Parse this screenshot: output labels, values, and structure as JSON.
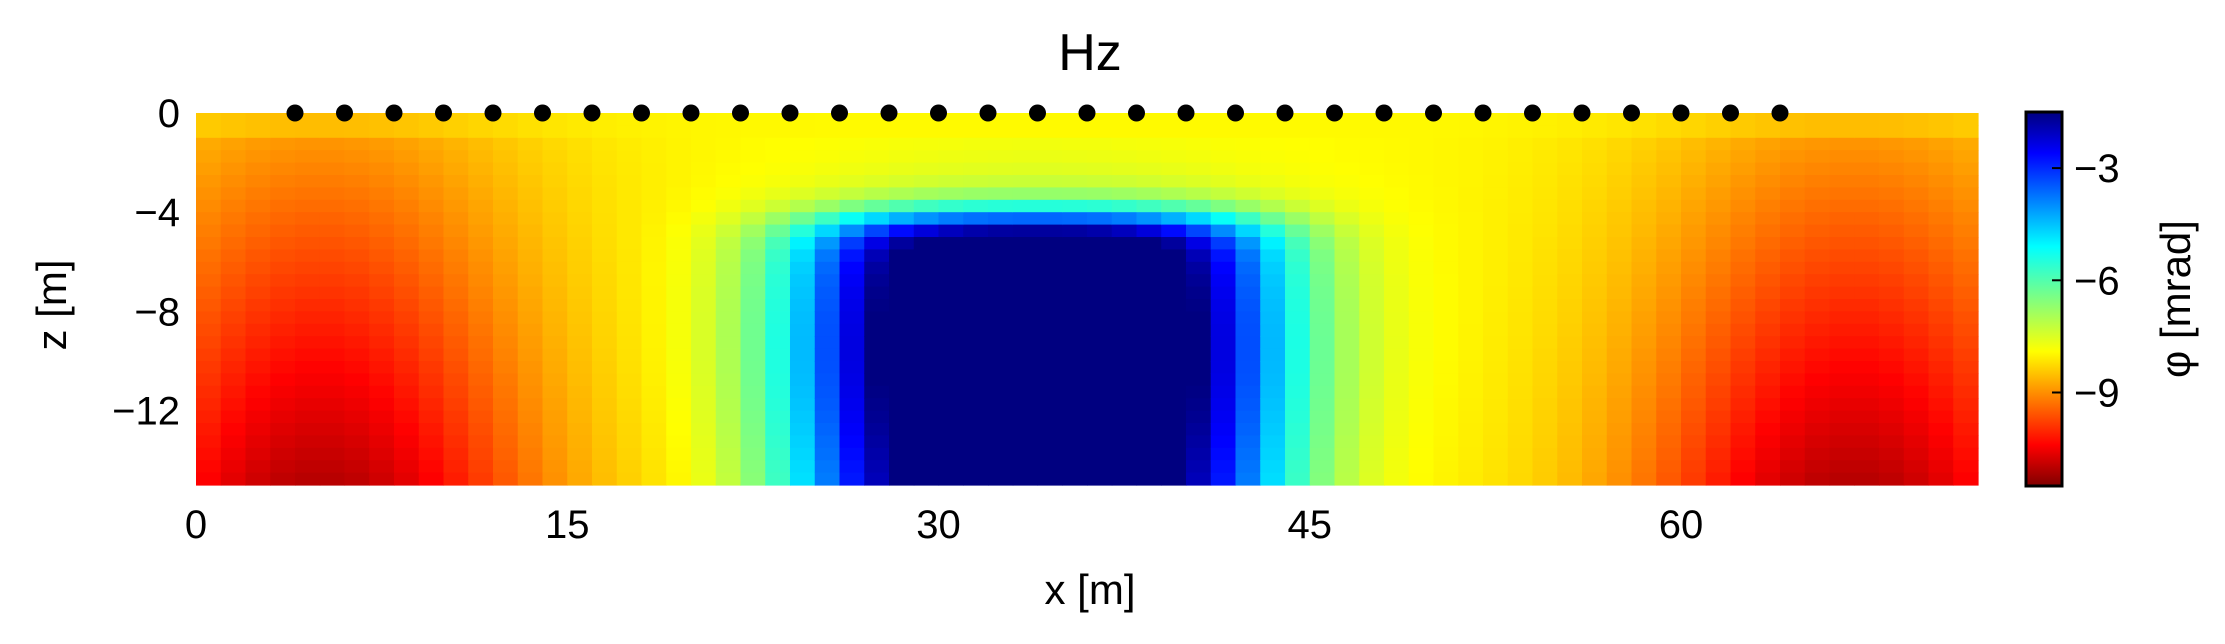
{
  "chart_data": {
    "type": "heatmap",
    "title": "Hz",
    "xlabel": "x [m]",
    "ylabel": "z [m]",
    "xlim": [
      0,
      72
    ],
    "ylim": [
      -15,
      0
    ],
    "x_ticks": [
      0,
      15,
      30,
      45,
      60
    ],
    "x_tick_labels": [
      "0",
      "15",
      "30",
      "45",
      "60"
    ],
    "y_ticks": [
      0,
      -4,
      -8,
      -12
    ],
    "y_tick_labels": [
      "0",
      "−4",
      "−8",
      "−12"
    ],
    "colorbar": {
      "label": "φ [mrad]",
      "colormap": "jet",
      "range": [
        -11.5,
        -1.5
      ],
      "ticks": [
        -3,
        -6,
        -9
      ],
      "tick_labels": [
        "−3",
        "−6",
        "−9"
      ]
    },
    "grid": false,
    "field": {
      "description_of_model": "anomaly",
      "anomaly_center_x": 34,
      "anomaly_center_z": -9,
      "min_value": -11.5,
      "max_value": -1.5
    },
    "electrodes": {
      "z": 0,
      "x": [
        4,
        6,
        8,
        10,
        12,
        14,
        16,
        18,
        20,
        22,
        24,
        26,
        28,
        30,
        32,
        34,
        36,
        38,
        40,
        42,
        44,
        46,
        48,
        50,
        52,
        54,
        56,
        58,
        60,
        62,
        64
      ]
    }
  }
}
